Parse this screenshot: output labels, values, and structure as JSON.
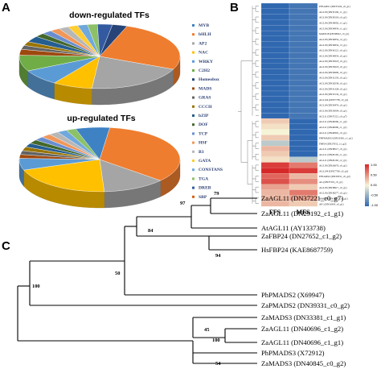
{
  "panels": {
    "a": "A",
    "b": "B",
    "c": "C"
  },
  "pies": {
    "down_title": "down-regulated TFs",
    "up_title": "up-regulated TFs",
    "legend": [
      {
        "name": "MYB",
        "color": "#3e82c4"
      },
      {
        "name": "bHLH",
        "color": "#ee7d2f"
      },
      {
        "name": "AP2",
        "color": "#a5a5a5"
      },
      {
        "name": "NAC",
        "color": "#ffc000"
      },
      {
        "name": "WRKY",
        "color": "#5b9bd5"
      },
      {
        "name": "C2H2",
        "color": "#70ad47"
      },
      {
        "name": "Homeobox",
        "color": "#264478"
      },
      {
        "name": "MADS",
        "color": "#9e480e"
      },
      {
        "name": "GRAS",
        "color": "#636363"
      },
      {
        "name": "CCCH",
        "color": "#997300"
      },
      {
        "name": "bZIP",
        "color": "#255e91"
      },
      {
        "name": "DOF",
        "color": "#43682b"
      },
      {
        "name": "TCP",
        "color": "#698ed0"
      },
      {
        "name": "HSF",
        "color": "#f1975a"
      },
      {
        "name": "B3",
        "color": "#b7b7b7"
      },
      {
        "name": "GATA",
        "color": "#ffcd33"
      },
      {
        "name": "CONSTANS",
        "color": "#6fa8dc"
      },
      {
        "name": "TGA",
        "color": "#8cc168"
      },
      {
        "name": "DREB",
        "color": "#335aa1"
      },
      {
        "name": "SBP",
        "color": "#d26012"
      }
    ],
    "down_slices": [
      3,
      2,
      2,
      3,
      2,
      2,
      2,
      2,
      2,
      2,
      2,
      3,
      3,
      26,
      20,
      8,
      8,
      8
    ],
    "down_colors": [
      "#9e480e",
      "#636363",
      "#997300",
      "#255e91",
      "#43682b",
      "#698ed0",
      "#f1975a",
      "#b7b7b7",
      "#ffcd33",
      "#6fa8dc",
      "#8cc168",
      "#335aa1",
      "#264478",
      "#ee7d2f",
      "#a5a5a5",
      "#ffc000",
      "#5b9bd5",
      "#70ad47"
    ],
    "up_slices": [
      2,
      2,
      2,
      2,
      2,
      2,
      2,
      2,
      2,
      2,
      7,
      35,
      13,
      21,
      6
    ],
    "up_colors": [
      "#9e480e",
      "#636363",
      "#997300",
      "#255e91",
      "#43682b",
      "#698ed0",
      "#f1975a",
      "#b7b7b7",
      "#6fa8dc",
      "#8cc168",
      "#3e82c4",
      "#ee7d2f",
      "#a5a5a5",
      "#ffc000",
      "#5b9bd5"
    ]
  },
  "heatmap": {
    "columns": [
      "FFS",
      "MFS"
    ],
    "rows": [
      {
        "label": "PPSAMS1 (DN33104_c0_g1)",
        "v": [
          -1.0,
          -0.9
        ]
      },
      {
        "label": "AGL18 (DN33106_c1_g1)",
        "v": [
          -1.0,
          -0.9
        ]
      },
      {
        "label": "AGL18 (DN28118_c0_g1)",
        "v": [
          -1.0,
          -0.9
        ]
      },
      {
        "label": "AGL18 (DN39092_c1_g1)",
        "v": [
          -1.0,
          -0.9
        ]
      },
      {
        "label": "AGL18 (DN34854_c1_g1)",
        "v": [
          -1.0,
          -0.9
        ]
      },
      {
        "label": "MADS18 (DN38022_c0_g1)",
        "v": [
          -1.0,
          -0.9
        ]
      },
      {
        "label": "AGL18 (DN34854_c2_g1)",
        "v": [
          -1.0,
          -0.9
        ]
      },
      {
        "label": "AGL18 (DN34854_c3_g1)",
        "v": [
          -1.0,
          -0.9
        ]
      },
      {
        "label": "AGL18 (DN36121_c0_g1)",
        "v": [
          -1.0,
          -0.9
        ]
      },
      {
        "label": "AGL18 (DN34854_c0_g1)",
        "v": [
          -1.0,
          -0.9
        ]
      },
      {
        "label": "AGL18 (DN35018_c0_g1)",
        "v": [
          -1.0,
          -0.9
        ]
      },
      {
        "label": "AGL18 (DN35618_c0_g1)",
        "v": [
          -1.0,
          -0.9
        ]
      },
      {
        "label": "AGL18 (DN36999_c0_g1)",
        "v": [
          -1.0,
          -0.9
        ]
      },
      {
        "label": "AGL18 (DN31250_c0_g1)",
        "v": [
          -1.0,
          -0.9
        ]
      },
      {
        "label": "AGL18 (DN32058_c0_g1)",
        "v": [
          -1.0,
          -0.9
        ]
      },
      {
        "label": "AGL18 (DN31328_c0_g1)",
        "v": [
          -1.0,
          -0.9
        ]
      },
      {
        "label": "AGL18 (DN31534_c0_g1)",
        "v": [
          -1.0,
          -0.9
        ]
      },
      {
        "label": "AGL104 (DN37738_c0_g1)",
        "v": [
          -1.0,
          -0.9
        ]
      },
      {
        "label": "AGL18 (DN30476_c0_g1)",
        "v": [
          -1.0,
          -0.9
        ]
      },
      {
        "label": "AGL18 (DN33004_c0_g1)",
        "v": [
          -1.0,
          -0.9
        ]
      },
      {
        "label": "AGL11 (DN37221_c0_g7)",
        "v": [
          -1.0,
          -0.9
        ]
      },
      {
        "label": "AGL11 (DN40696_c1_g2)",
        "v": [
          0.2,
          -1.0
        ]
      },
      {
        "label": "AGL11 (DN40696_c1_g1)",
        "v": [
          0.1,
          -1.0
        ]
      },
      {
        "label": "AGL11 (DN40845_c0_g1)",
        "v": [
          0.0,
          -1.0
        ]
      },
      {
        "label": "PHPMADS3 (DN33381_c1_g1)",
        "v": [
          0.2,
          -1.0
        ]
      },
      {
        "label": "FBP24 (DN27652_c1_g2)",
        "v": [
          -0.3,
          -1.0
        ]
      },
      {
        "label": "AGL11 (DN38017_c0_g1)",
        "v": [
          0.3,
          -1.0
        ]
      },
      {
        "label": "AGL11 (DN29192_c1_g1)",
        "v": [
          0.2,
          -1.0
        ]
      },
      {
        "label": "AGL11 (DN29192_c2_g1)",
        "v": [
          0.1,
          -0.3
        ]
      },
      {
        "label": "AGL18 (DN26676_c0_g1)",
        "v": [
          0.9,
          0.6
        ]
      },
      {
        "label": "AGL104 (DN27760_c0_g1)",
        "v": [
          1.0,
          0.9
        ]
      },
      {
        "label": "PPSAMS2 (DN39331_c0_g2)",
        "v": [
          0.7,
          0.3
        ]
      },
      {
        "label": "AG (DN37319_c0_g1)",
        "v": [
          0.8,
          0.5
        ]
      },
      {
        "label": "AGL18 (DN38917_c0_g1)",
        "v": [
          0.4,
          0.2
        ]
      },
      {
        "label": "AGL18 (DN38277_c0_g1)",
        "v": [
          0.3,
          0.6
        ]
      },
      {
        "label": "MADS8 (DN38017_c1_g1)",
        "v": [
          0.3,
          0.4
        ]
      },
      {
        "label": "AP1 (DN31843_c0_g1)",
        "v": [
          0.3,
          0.2
        ]
      }
    ],
    "colorbar": {
      "ticks": [
        "1.00",
        "0.50",
        "0.00",
        "-0.50",
        "-1.00"
      ],
      "min": -1.0,
      "max": 1.0
    }
  },
  "tree": {
    "leaves": [
      "ZaAGL11 (DN37221_c0_g7)",
      "ZaAGL11 (DN29192_c1_g1)",
      "AtAGL11 (AY133738)",
      "ZaFBP24 (DN27652_c1_g2)",
      "HsFBP24 (KAE8687759)",
      "PhPMADS2 (X69947)",
      "ZaPMADS2 (DN39331_c0_g2)",
      "ZaMADS3 (DN33381_c1_g1)",
      "ZaAGL11 (DN40696_c1_g2)",
      "ZaAGL11 (DN40696_c1_g1)",
      "PhPMADS3 (X72912)",
      "ZaMADS3 (DN40845_c0_g2)"
    ],
    "bootstraps": {
      "n79": "79",
      "n97": "97",
      "n84": "84",
      "n94": "94",
      "n50": "50",
      "n100_top": "100",
      "n45": "45",
      "n100_mid": "100",
      "n54": "54"
    }
  }
}
